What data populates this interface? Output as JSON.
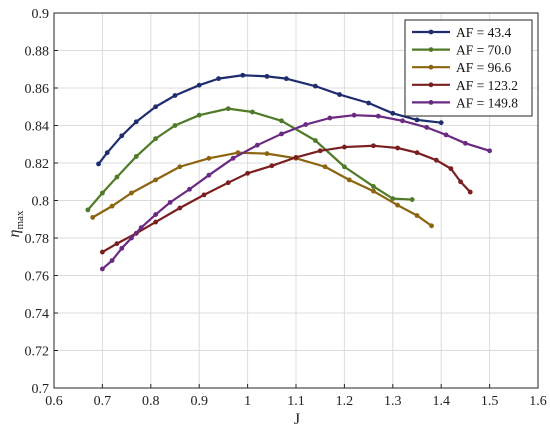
{
  "chart_data": {
    "type": "line",
    "title": "",
    "xlabel": "J",
    "ylabel_main": "η",
    "ylabel_sub": "max",
    "xlim": [
      0.6,
      1.6
    ],
    "ylim": [
      0.7,
      0.9
    ],
    "xticks": [
      0.6,
      0.7,
      0.8,
      0.9,
      1.0,
      1.1,
      1.2,
      1.3,
      1.4,
      1.5,
      1.6
    ],
    "xtick_labels": [
      "0.6",
      "0.7",
      "0.8",
      "0.9",
      "1",
      "1.1",
      "1.2",
      "1.3",
      "1.4",
      "1.5",
      "1.6"
    ],
    "yticks": [
      0.7,
      0.72,
      0.74,
      0.76,
      0.78,
      0.8,
      0.82,
      0.84,
      0.86,
      0.88,
      0.9
    ],
    "ytick_labels": [
      "0.7",
      "0.72",
      "0.74",
      "0.76",
      "0.78",
      "0.8",
      "0.82",
      "0.84",
      "0.86",
      "0.88",
      "0.9"
    ],
    "grid": true,
    "legend_position": "top-right",
    "series": [
      {
        "name": "AF = 43.4",
        "color": "#1f2d6e",
        "x": [
          0.692,
          0.71,
          0.74,
          0.77,
          0.81,
          0.85,
          0.9,
          0.94,
          0.99,
          1.04,
          1.08,
          1.14,
          1.19,
          1.25,
          1.3,
          1.35,
          1.4
        ],
        "y": [
          0.8195,
          0.8255,
          0.8345,
          0.842,
          0.85,
          0.856,
          0.8615,
          0.865,
          0.8668,
          0.8662,
          0.865,
          0.861,
          0.8565,
          0.852,
          0.8465,
          0.843,
          0.8415
        ]
      },
      {
        "name": "AF = 70.0",
        "color": "#4f7a28",
        "x": [
          0.67,
          0.7,
          0.73,
          0.77,
          0.81,
          0.85,
          0.9,
          0.96,
          1.01,
          1.07,
          1.14,
          1.2,
          1.26,
          1.3,
          1.34
        ],
        "y": [
          0.795,
          0.804,
          0.8125,
          0.8235,
          0.833,
          0.84,
          0.8455,
          0.849,
          0.8472,
          0.8425,
          0.832,
          0.818,
          0.8075,
          0.801,
          0.8005
        ]
      },
      {
        "name": "AF = 96.6",
        "color": "#8c6410",
        "x": [
          0.68,
          0.72,
          0.76,
          0.81,
          0.86,
          0.92,
          0.98,
          1.04,
          1.1,
          1.16,
          1.21,
          1.26,
          1.31,
          1.35,
          1.38
        ],
        "y": [
          0.791,
          0.797,
          0.804,
          0.811,
          0.818,
          0.8225,
          0.8255,
          0.825,
          0.8225,
          0.818,
          0.811,
          0.805,
          0.7975,
          0.792,
          0.7865
        ]
      },
      {
        "name": "AF = 123.2",
        "color": "#7a1f1f",
        "x": [
          0.7,
          0.73,
          0.77,
          0.81,
          0.86,
          0.91,
          0.96,
          1.0,
          1.05,
          1.1,
          1.15,
          1.2,
          1.26,
          1.31,
          1.35,
          1.39,
          1.42,
          1.44,
          1.46
        ],
        "y": [
          0.7725,
          0.777,
          0.7825,
          0.7885,
          0.796,
          0.803,
          0.8095,
          0.8145,
          0.8185,
          0.823,
          0.8265,
          0.8285,
          0.8292,
          0.828,
          0.8255,
          0.8215,
          0.817,
          0.81,
          0.8045
        ]
      },
      {
        "name": "AF = 149.8",
        "color": "#6a2a82",
        "x": [
          0.7,
          0.72,
          0.74,
          0.76,
          0.78,
          0.81,
          0.84,
          0.88,
          0.92,
          0.97,
          1.02,
          1.07,
          1.12,
          1.17,
          1.22,
          1.27,
          1.32,
          1.37,
          1.41,
          1.45,
          1.5
        ],
        "y": [
          0.7635,
          0.768,
          0.7745,
          0.78,
          0.7855,
          0.7925,
          0.799,
          0.806,
          0.8135,
          0.8225,
          0.8295,
          0.8355,
          0.8405,
          0.844,
          0.8455,
          0.845,
          0.8425,
          0.839,
          0.835,
          0.8305,
          0.8265
        ]
      }
    ]
  }
}
